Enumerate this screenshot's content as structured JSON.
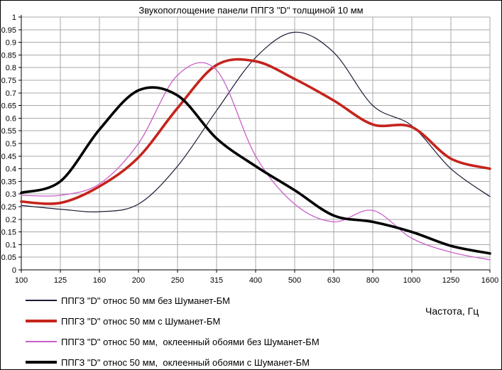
{
  "chart_data": {
    "type": "line",
    "title": "Звукопоглощение панели ППГЗ \"D\" толщиной 10 мм",
    "xlabel": "Частота, Гц",
    "ylabel": "",
    "x_scale": "third-octave bands, equally spaced ticks",
    "grid": true,
    "legend_position": "bottom-left",
    "ylim": [
      0,
      1
    ],
    "y_tick_step": 0.05,
    "y_ticks": [
      "1",
      "0.95",
      "0.9",
      "0.85",
      "0.8",
      "0.75",
      "0.7",
      "0.65",
      "0.6",
      "0.55",
      "0.5",
      "0.45",
      "0.4",
      "0.35",
      "0.3",
      "0.25",
      "0.2",
      "0.15",
      "0.1",
      "0.05",
      "0"
    ],
    "x_ticks": [
      "100",
      "125",
      "160",
      "200",
      "250",
      "315",
      "400",
      "500",
      "630",
      "800",
      "1000",
      "1250",
      "1600"
    ],
    "categories": [
      100,
      125,
      160,
      200,
      250,
      315,
      400,
      500,
      630,
      800,
      1000,
      1250,
      1600
    ],
    "series": [
      {
        "name": "ППГЗ \"D\" относ 50 мм без Шуманет-БМ",
        "color": "#1b1b38",
        "width": 1.2,
        "values": [
          0.255,
          0.24,
          0.23,
          0.26,
          0.41,
          0.63,
          0.84,
          0.94,
          0.86,
          0.65,
          0.57,
          0.4,
          0.29
        ]
      },
      {
        "name": "ППГЗ \"D\" относ 50 мм с Шуманет-БМ",
        "color": "#c4241c",
        "width": 3.6,
        "values": [
          0.27,
          0.265,
          0.33,
          0.445,
          0.64,
          0.81,
          0.825,
          0.755,
          0.67,
          0.575,
          0.565,
          0.44,
          0.4
        ]
      },
      {
        "name": "ППГЗ \"D\" относ 50 мм,  оклеенный обоями без Шуманет-БМ",
        "color": "#c95fc9",
        "width": 1.3,
        "values": [
          0.295,
          0.295,
          0.34,
          0.5,
          0.77,
          0.79,
          0.45,
          0.26,
          0.19,
          0.235,
          0.125,
          0.07,
          0.04
        ]
      },
      {
        "name": "ППГЗ \"D\" относ 50 мм,  оклеенный обоями с Шуманет-БМ",
        "color": "#000000",
        "width": 3.6,
        "values": [
          0.305,
          0.35,
          0.555,
          0.71,
          0.69,
          0.52,
          0.41,
          0.315,
          0.215,
          0.19,
          0.15,
          0.095,
          0.065
        ]
      }
    ],
    "colors": {
      "grid": "#a8a8a8",
      "axis": "#000000",
      "background": "#ffffff",
      "frame_border": "#000000"
    }
  }
}
